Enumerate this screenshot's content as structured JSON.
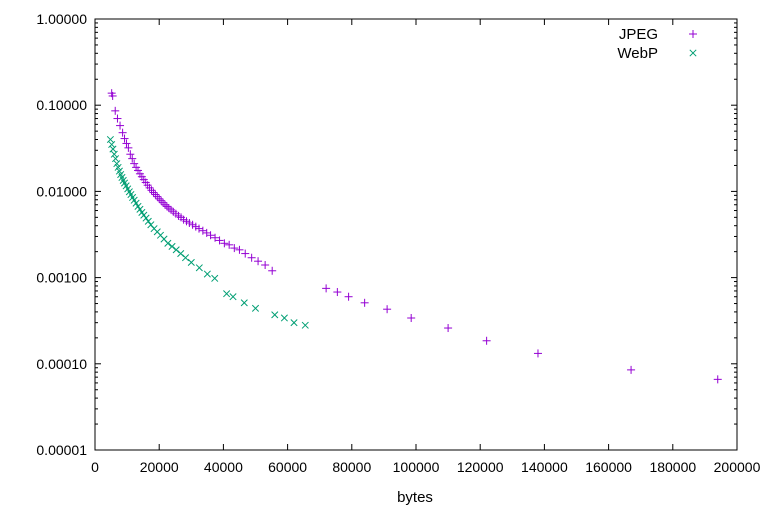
{
  "chart_data": {
    "type": "scatter",
    "title": "",
    "xlabel": "bytes",
    "ylabel": "",
    "x_scale": "linear",
    "y_scale": "log",
    "xlim": [
      0,
      200000
    ],
    "ylim": [
      1e-05,
      1
    ],
    "x_ticks": [
      {
        "value": 0,
        "label": "0"
      },
      {
        "value": 20000,
        "label": "20000"
      },
      {
        "value": 40000,
        "label": "40000"
      },
      {
        "value": 60000,
        "label": "60000"
      },
      {
        "value": 80000,
        "label": "80000"
      },
      {
        "value": 100000,
        "label": "100000"
      },
      {
        "value": 120000,
        "label": "120000"
      },
      {
        "value": 140000,
        "label": "140000"
      },
      {
        "value": 160000,
        "label": "160000"
      },
      {
        "value": 180000,
        "label": "180000"
      },
      {
        "value": 200000,
        "label": "200000"
      }
    ],
    "y_ticks": [
      {
        "value": 1,
        "label": "1.00000"
      },
      {
        "value": 0.1,
        "label": "0.10000"
      },
      {
        "value": 0.01,
        "label": "0.01000"
      },
      {
        "value": 0.001,
        "label": "0.00100"
      },
      {
        "value": 0.0001,
        "label": "0.00010"
      },
      {
        "value": 1e-05,
        "label": "0.00001"
      }
    ],
    "grid": false,
    "legend_position": "top-right",
    "series": [
      {
        "name": "JPEG",
        "marker": "plus",
        "color": "#9400d3",
        "points": [
          [
            5200,
            0.138
          ],
          [
            5500,
            0.128
          ],
          [
            6300,
            0.086
          ],
          [
            7000,
            0.07
          ],
          [
            7800,
            0.058
          ],
          [
            8600,
            0.048
          ],
          [
            9200,
            0.041
          ],
          [
            9800,
            0.036
          ],
          [
            10400,
            0.032
          ],
          [
            11000,
            0.027
          ],
          [
            11600,
            0.024
          ],
          [
            12200,
            0.021
          ],
          [
            12800,
            0.019
          ],
          [
            13400,
            0.0175
          ],
          [
            14000,
            0.016
          ],
          [
            14600,
            0.0148
          ],
          [
            15200,
            0.0137
          ],
          [
            15800,
            0.0127
          ],
          [
            16400,
            0.0118
          ],
          [
            17000,
            0.011
          ],
          [
            17600,
            0.0103
          ],
          [
            18200,
            0.0097
          ],
          [
            18800,
            0.0092
          ],
          [
            19400,
            0.0087
          ],
          [
            20000,
            0.0082
          ],
          [
            20600,
            0.0078
          ],
          [
            21200,
            0.0074
          ],
          [
            21800,
            0.007
          ],
          [
            22400,
            0.0067
          ],
          [
            23000,
            0.0064
          ],
          [
            23700,
            0.0061
          ],
          [
            24400,
            0.0058
          ],
          [
            25200,
            0.0055
          ],
          [
            26000,
            0.0052
          ],
          [
            26800,
            0.005
          ],
          [
            27600,
            0.0047
          ],
          [
            28500,
            0.0045
          ],
          [
            29400,
            0.0043
          ],
          [
            30400,
            0.0041
          ],
          [
            31400,
            0.0039
          ],
          [
            32400,
            0.0037
          ],
          [
            33600,
            0.0035
          ],
          [
            34800,
            0.0033
          ],
          [
            36000,
            0.0031
          ],
          [
            37400,
            0.0029
          ],
          [
            38800,
            0.0027
          ],
          [
            40300,
            0.0025
          ],
          [
            41800,
            0.0024
          ],
          [
            43400,
            0.0022
          ],
          [
            45000,
            0.0021
          ],
          [
            46800,
            0.0019
          ],
          [
            48800,
            0.0017
          ],
          [
            50800,
            0.00155
          ],
          [
            53000,
            0.0014
          ],
          [
            55200,
            0.0012
          ],
          [
            72000,
            0.00075
          ],
          [
            75500,
            0.00068
          ],
          [
            79000,
            0.0006
          ],
          [
            84000,
            0.00051
          ],
          [
            91000,
            0.00043
          ],
          [
            98500,
            0.00034
          ],
          [
            110000,
            0.00026
          ],
          [
            122000,
            0.000185
          ],
          [
            138000,
            0.000132
          ],
          [
            167000,
            8.5e-05
          ],
          [
            194000,
            6.6e-05
          ]
        ]
      },
      {
        "name": "WebP",
        "marker": "cross",
        "color": "#009e73",
        "points": [
          [
            4800,
            0.04
          ],
          [
            5200,
            0.035
          ],
          [
            5600,
            0.031
          ],
          [
            6000,
            0.027
          ],
          [
            6400,
            0.024
          ],
          [
            6800,
            0.021
          ],
          [
            7200,
            0.019
          ],
          [
            7600,
            0.0172
          ],
          [
            8000,
            0.0157
          ],
          [
            8400,
            0.0145
          ],
          [
            8800,
            0.0134
          ],
          [
            9200,
            0.0125
          ],
          [
            9700,
            0.0116
          ],
          [
            10200,
            0.0107
          ],
          [
            10700,
            0.0099
          ],
          [
            11200,
            0.0092
          ],
          [
            11700,
            0.0085
          ],
          [
            12200,
            0.0079
          ],
          [
            12800,
            0.0073
          ],
          [
            13400,
            0.0067
          ],
          [
            14000,
            0.0062
          ],
          [
            14600,
            0.0057
          ],
          [
            15200,
            0.0053
          ],
          [
            15900,
            0.0049
          ],
          [
            16600,
            0.0045
          ],
          [
            17400,
            0.0041
          ],
          [
            18400,
            0.0037
          ],
          [
            19400,
            0.0034
          ],
          [
            20400,
            0.0031
          ],
          [
            21500,
            0.0028
          ],
          [
            22700,
            0.0025
          ],
          [
            24000,
            0.0023
          ],
          [
            25300,
            0.0021
          ],
          [
            26700,
            0.0019
          ],
          [
            28200,
            0.0017
          ],
          [
            30000,
            0.0015
          ],
          [
            32500,
            0.0013
          ],
          [
            35000,
            0.0011
          ],
          [
            37300,
            0.00098
          ],
          [
            41000,
            0.00065
          ],
          [
            43000,
            0.0006
          ],
          [
            46500,
            0.00051
          ],
          [
            50000,
            0.00044
          ],
          [
            56000,
            0.00037
          ],
          [
            59000,
            0.00034
          ],
          [
            62000,
            0.0003
          ],
          [
            65500,
            0.00028
          ]
        ]
      }
    ]
  }
}
